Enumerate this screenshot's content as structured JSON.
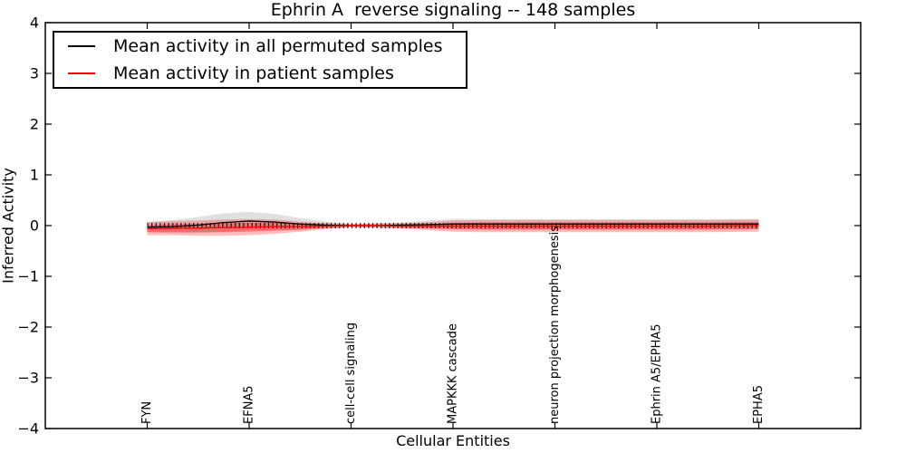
{
  "chart_data": {
    "type": "line",
    "title": "Ephrin A  reverse signaling -- 148 samples",
    "xlabel": "Cellular Entities",
    "ylabel": "Inferred Activity",
    "xlim": [
      -1,
      7
    ],
    "ylim": [
      -4,
      4
    ],
    "grid": false,
    "ytick_values": [
      4,
      3,
      2,
      1,
      0,
      -1,
      -2,
      -3,
      -4
    ],
    "ytick_labels": [
      "4",
      "3",
      "2",
      "1",
      "0",
      "−1",
      "−2",
      "−3",
      "−4"
    ],
    "xtick_positions": [
      0,
      1,
      2,
      3,
      4,
      5,
      6
    ],
    "xtick_labels": [
      "FYN",
      "EFNA5",
      "cell-cell signaling",
      "MAPKKK cascade",
      "neuron projection morphogenesis",
      "Ephrin A5/EPHA5",
      "EPHA5"
    ],
    "x": [
      0,
      0.25,
      0.5,
      0.75,
      1,
      1.25,
      1.5,
      1.75,
      2,
      2.25,
      2.5,
      2.75,
      3,
      3.25,
      3.5,
      3.75,
      4,
      4.25,
      4.5,
      4.75,
      5,
      5.25,
      5.5,
      5.75,
      6
    ],
    "series": [
      {
        "name": "Mean activity in all permuted samples",
        "color": "#000000",
        "values": [
          -0.03,
          -0.02,
          0.01,
          0.06,
          0.09,
          0.07,
          0.03,
          0.01,
          0,
          0,
          0.01,
          0.02,
          0.03,
          0.03,
          0.03,
          0.03,
          0.03,
          0.03,
          0.03,
          0.03,
          0.03,
          0.03,
          0.03,
          0.03,
          0.03
        ]
      },
      {
        "name": "Mean activity in patient samples",
        "color": "#ff0000",
        "values": [
          -0.06,
          -0.05,
          -0.05,
          -0.04,
          -0.03,
          -0.02,
          -0.02,
          -0.01,
          0,
          0,
          -0.01,
          -0.01,
          -0.01,
          -0.01,
          -0.01,
          -0.01,
          -0.01,
          -0.01,
          -0.01,
          -0.01,
          -0.01,
          -0.01,
          -0.01,
          -0.005,
          0
        ]
      }
    ],
    "bands": [
      {
        "name": "permuted-samples-std-band",
        "center_series": 0,
        "color": "#000000",
        "opacity": 0.12,
        "half_widths": [
          0.1,
          0.13,
          0.16,
          0.18,
          0.18,
          0.16,
          0.12,
          0.07,
          0.03,
          0.04,
          0.06,
          0.08,
          0.1,
          0.1,
          0.1,
          0.1,
          0.1,
          0.1,
          0.1,
          0.1,
          0.1,
          0.1,
          0.1,
          0.1,
          0.1
        ]
      },
      {
        "name": "patient-samples-std-band-outer",
        "center_series": 1,
        "color": "#ff0000",
        "opacity": 0.26,
        "half_widths": [
          0.13,
          0.14,
          0.15,
          0.16,
          0.16,
          0.14,
          0.1,
          0.06,
          0.03,
          0.04,
          0.05,
          0.08,
          0.11,
          0.12,
          0.12,
          0.12,
          0.12,
          0.12,
          0.12,
          0.12,
          0.12,
          0.12,
          0.12,
          0.12,
          0.12
        ]
      },
      {
        "name": "patient-samples-std-band-inner",
        "center_series": 1,
        "color": "#ff0000",
        "opacity": 0.34,
        "half_widths": [
          0.07,
          0.08,
          0.08,
          0.09,
          0.09,
          0.08,
          0.06,
          0.03,
          0.02,
          0.02,
          0.03,
          0.04,
          0.06,
          0.07,
          0.07,
          0.07,
          0.07,
          0.07,
          0.07,
          0.07,
          0.07,
          0.07,
          0.07,
          0.07,
          0.07
        ]
      }
    ],
    "zero_marker_line": {
      "y": 0,
      "x_start": 0,
      "x_end": 6,
      "color": "#000000",
      "style": "dense-vertical-dashes"
    },
    "legend": {
      "position": "upper left",
      "items": [
        {
          "label": "Mean activity in all permuted samples",
          "color": "#000000"
        },
        {
          "label": "Mean activity in patient samples",
          "color": "#ff0000"
        }
      ]
    }
  }
}
